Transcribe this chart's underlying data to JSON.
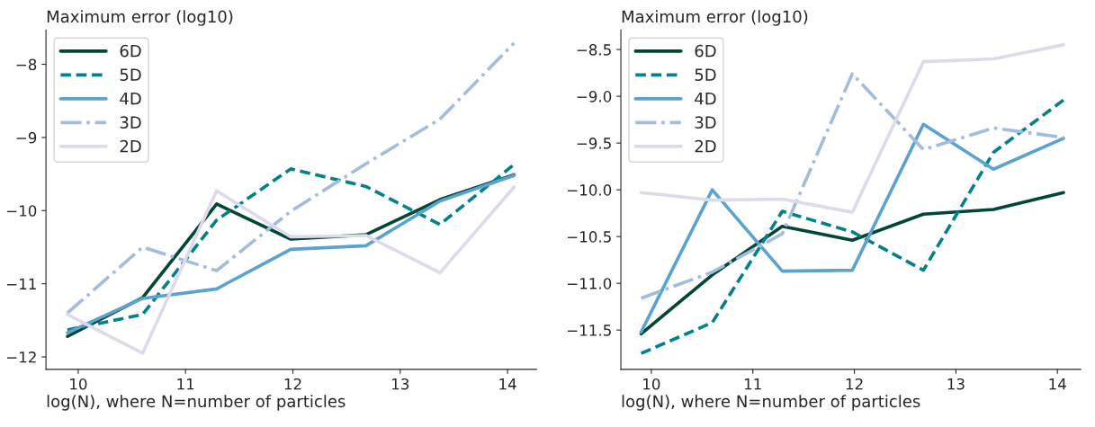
{
  "chart_data": [
    {
      "type": "line",
      "ylabel": "Maximum error (log10)",
      "xlabel": "log(N), where N=number of particles",
      "x": [
        9.9,
        10.6,
        11.29,
        11.98,
        12.68,
        13.37,
        14.06
      ],
      "xlim": [
        9.7,
        14.27
      ],
      "xticks": [
        10,
        11,
        12,
        13,
        14
      ],
      "ylim": [
        -12.17,
        -7.53
      ],
      "yticks": [
        {
          "value": -12,
          "label": "−12"
        },
        {
          "value": -11,
          "label": "−11"
        },
        {
          "value": -10,
          "label": "−10"
        },
        {
          "value": -9,
          "label": "−9"
        },
        {
          "value": -8,
          "label": "−8"
        }
      ],
      "grid": false,
      "legend": "top left",
      "series": [
        {
          "name": "6D",
          "color": "#014636",
          "line_style": "solid",
          "values": [
            -11.72,
            -11.19,
            -9.91,
            -10.39,
            -10.33,
            -9.85,
            -9.51
          ]
        },
        {
          "name": "5D",
          "color": "#02818a",
          "line_style": "dashed",
          "values": [
            -11.63,
            -11.42,
            -10.13,
            -9.43,
            -9.67,
            -10.19,
            -9.37
          ]
        },
        {
          "name": "4D",
          "color": "#5ba3cf",
          "line_style": "solid",
          "values": [
            -11.67,
            -11.2,
            -11.07,
            -10.53,
            -10.48,
            -9.87,
            -9.52
          ]
        },
        {
          "name": "3D",
          "color": "#a3bcdb",
          "line_style": "dashdot",
          "values": [
            -11.4,
            -10.5,
            -10.82,
            -10.01,
            -9.36,
            -8.75,
            -7.71
          ]
        },
        {
          "name": "2D",
          "color": "#dcdaeb",
          "line_style": "solid",
          "values": [
            -11.42,
            -11.95,
            -9.73,
            -10.36,
            -10.34,
            -10.85,
            -9.68
          ]
        }
      ]
    },
    {
      "type": "line",
      "ylabel": "Maximum error (log10)",
      "xlabel": "log(N), where N=number of particles",
      "x": [
        9.9,
        10.6,
        11.29,
        11.98,
        12.68,
        13.37,
        14.06
      ],
      "xlim": [
        9.7,
        14.23
      ],
      "xticks": [
        10,
        11,
        12,
        13,
        14
      ],
      "ylim": [
        -11.92,
        -8.29
      ],
      "yticks": [
        {
          "value": -11.5,
          "label": "−11.5"
        },
        {
          "value": -11,
          "label": "−11.0"
        },
        {
          "value": -10.5,
          "label": "−10.5"
        },
        {
          "value": -10,
          "label": "−10.0"
        },
        {
          "value": -9.5,
          "label": "−9.5"
        },
        {
          "value": -9,
          "label": "−9.0"
        },
        {
          "value": -8.5,
          "label": "−8.5"
        }
      ],
      "grid": false,
      "legend": "top left",
      "series": [
        {
          "name": "6D",
          "color": "#014636",
          "line_style": "solid",
          "values": [
            -11.54,
            -10.91,
            -10.39,
            -10.54,
            -10.26,
            -10.21,
            -10.03
          ]
        },
        {
          "name": "5D",
          "color": "#02818a",
          "line_style": "dashed",
          "values": [
            -11.75,
            -11.42,
            -10.23,
            -10.45,
            -10.86,
            -9.6,
            -9.04
          ]
        },
        {
          "name": "4D",
          "color": "#5ba3cf",
          "line_style": "solid",
          "values": [
            -11.52,
            -10.0,
            -10.87,
            -10.86,
            -9.3,
            -9.78,
            -9.45
          ]
        },
        {
          "name": "3D",
          "color": "#a3bcdb",
          "line_style": "dashdot",
          "values": [
            -11.16,
            -10.88,
            -10.47,
            -8.76,
            -9.57,
            -9.34,
            -9.44
          ]
        },
        {
          "name": "2D",
          "color": "#dcdaeb",
          "line_style": "solid",
          "values": [
            -10.03,
            -10.11,
            -10.1,
            -10.24,
            -8.63,
            -8.6,
            -8.45
          ]
        }
      ]
    }
  ]
}
